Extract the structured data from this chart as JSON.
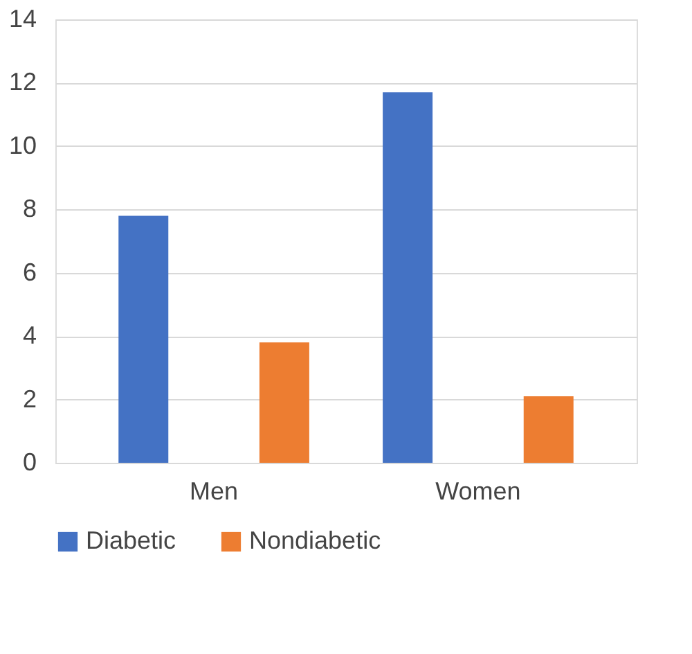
{
  "chart_data": {
    "type": "bar",
    "categories": [
      "Men",
      "Women"
    ],
    "series": [
      {
        "name": "Diabetic",
        "color": "#4472c4",
        "values": [
          7.8,
          11.7
        ]
      },
      {
        "name": "Nondiabetic",
        "color": "#ed7d31",
        "values": [
          3.8,
          2.1
        ]
      }
    ],
    "ylim": [
      0,
      14
    ],
    "yticks": [
      0,
      2,
      4,
      6,
      8,
      10,
      12,
      14
    ],
    "grid": "y",
    "legend": "bottom"
  }
}
